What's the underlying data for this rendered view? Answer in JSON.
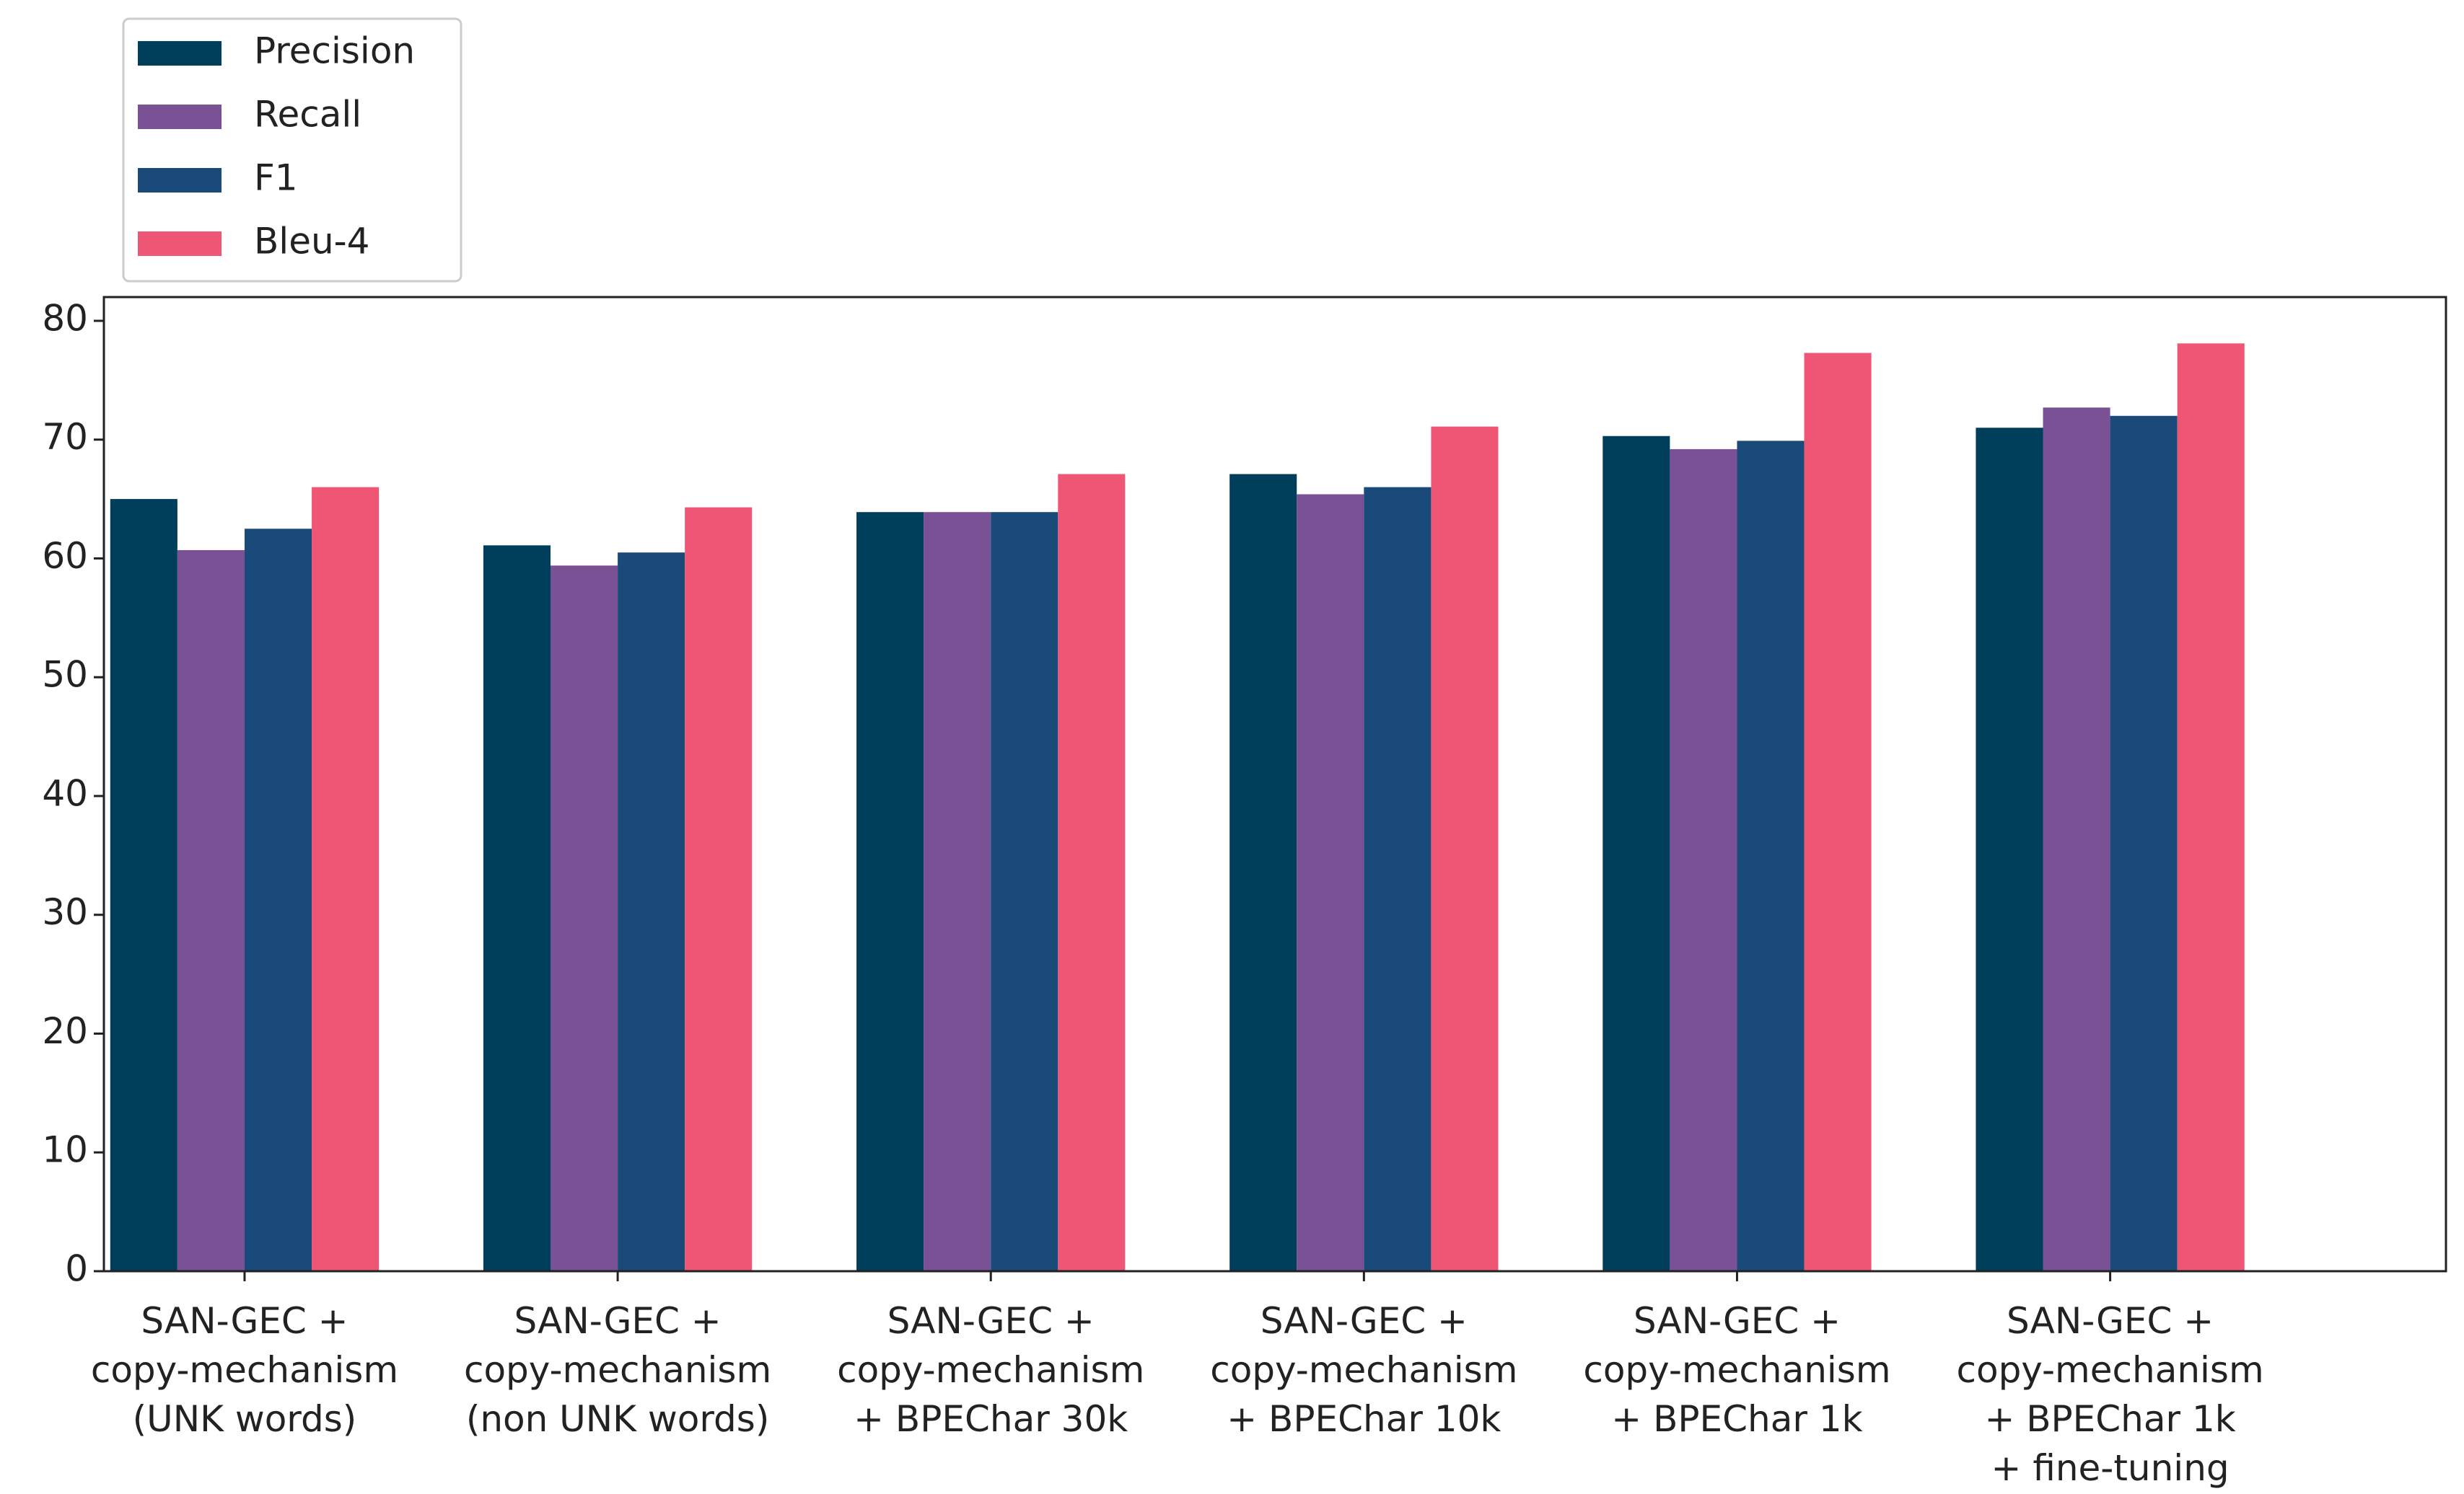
{
  "chart_data": {
    "type": "bar",
    "categories": [
      "SAN-GEC +\ncopy-mechanism\n(UNK words)",
      "SAN-GEC +\ncopy-mechanism\n(non UNK words)",
      "SAN-GEC +\ncopy-mechanism\n+ BPEChar 30k",
      "SAN-GEC +\ncopy-mechanism\n+ BPEChar 10k",
      "SAN-GEC +\ncopy-mechanism\n+ BPEChar 1k",
      "SAN-GEC +\ncopy-mechanism\n+ BPEChar 1k\n+ fine-tuning"
    ],
    "series": [
      {
        "name": "Precision",
        "color": "#003f5c",
        "values": [
          65.0,
          61.1,
          63.9,
          67.1,
          70.3,
          71.0
        ]
      },
      {
        "name": "Recall",
        "color": "#7a5195",
        "values": [
          60.7,
          59.4,
          63.9,
          65.4,
          69.2,
          72.7
        ]
      },
      {
        "name": "F1",
        "color": "#1a4a7a",
        "values": [
          62.5,
          60.5,
          63.9,
          66.0,
          69.9,
          72.0
        ]
      },
      {
        "name": "Bleu-4",
        "color": "#ef5675",
        "values": [
          66.0,
          64.3,
          67.1,
          71.1,
          77.3,
          78.1
        ]
      }
    ],
    "ylim": [
      0,
      82
    ],
    "yticks": [
      0,
      10,
      20,
      30,
      40,
      50,
      60,
      70,
      80
    ],
    "legend": "upper-left-outside"
  }
}
